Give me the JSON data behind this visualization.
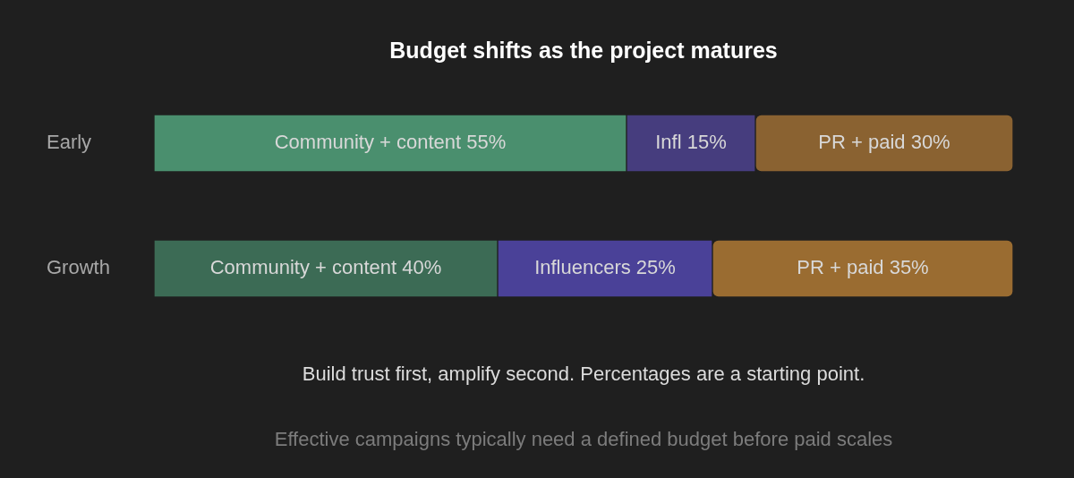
{
  "chart_data": {
    "type": "bar",
    "orientation": "horizontal",
    "stacked": true,
    "title": "Budget shifts as the project matures",
    "categories": [
      "Early",
      "Growth"
    ],
    "xlim": [
      0,
      100
    ],
    "tick_labels": "y",
    "grid": false,
    "legend": false,
    "series": [
      {
        "colors": [
          "#4a8f6e",
          "#3c6b55"
        ],
        "values": [
          55,
          40
        ],
        "value_labels": [
          "Community + content 55%",
          "Community + content 40%"
        ]
      },
      {
        "colors": [
          "#463d7e",
          "#4a4198"
        ],
        "values": [
          15,
          25
        ],
        "value_labels": [
          "Infl 15%",
          "Influencers 25%"
        ]
      },
      {
        "colors": [
          "#8a6231",
          "#9a6c31"
        ],
        "values": [
          30,
          35
        ],
        "value_labels": [
          "PR + paid 30%",
          "PR + paid 35%"
        ]
      }
    ],
    "annotations": [
      "Build trust first, amplify second. Percentages are a starting point.",
      "Effective campaigns typically need a defined budget before paid scales"
    ]
  }
}
